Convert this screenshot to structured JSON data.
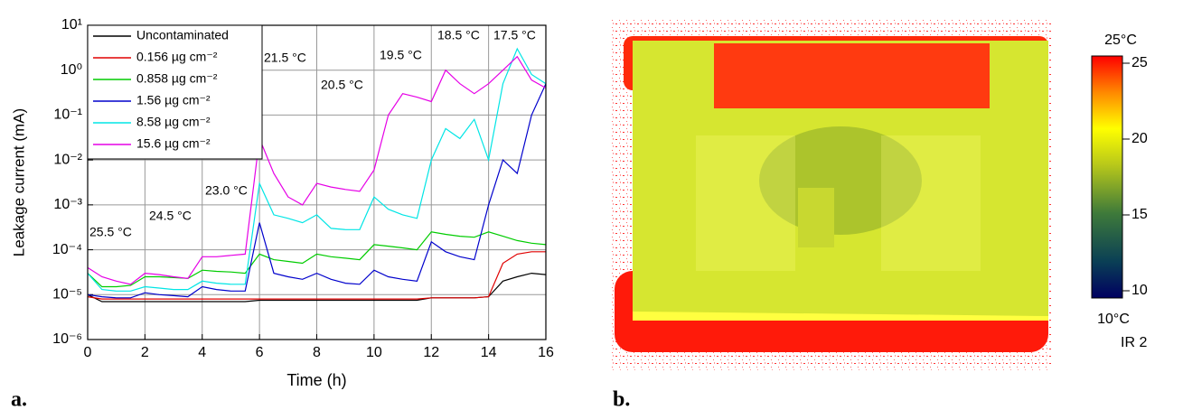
{
  "panel_labels": [
    "a.",
    "b."
  ],
  "chart_data": [
    {
      "type": "line",
      "log_y": true,
      "grid": true,
      "legend": "upper-left",
      "x_label": "Time (h)",
      "y_label": "Leakage current (mA)",
      "xlim": [
        0,
        16
      ],
      "xticks": [
        0,
        2,
        4,
        6,
        8,
        10,
        12,
        14,
        16
      ],
      "ylim": [
        1e-06,
        10
      ],
      "yticks": [
        {
          "value": 1e-06,
          "label": "10⁻⁶"
        },
        {
          "value": 1e-05,
          "label": "10⁻⁵"
        },
        {
          "value": 0.0001,
          "label": "10⁻⁴"
        },
        {
          "value": 0.001,
          "label": "10⁻³"
        },
        {
          "value": 0.01,
          "label": "10⁻²"
        },
        {
          "value": 0.1,
          "label": "10⁻¹"
        },
        {
          "value": 1,
          "label": "10⁰"
        },
        {
          "value": 10,
          "label": "10¹"
        }
      ],
      "annotations": [
        "25.5 °C",
        "24.5 °C",
        "23.0 °C",
        "21.5 °C",
        "20.5 °C",
        "19.5 °C",
        "18.5 °C",
        "17.5 °C"
      ],
      "x": [
        0,
        0.5,
        1,
        1.5,
        2,
        2.5,
        3,
        3.5,
        4,
        4.5,
        5,
        5.5,
        6,
        6.5,
        7,
        7.5,
        8,
        8.5,
        9,
        9.5,
        10,
        10.5,
        11,
        11.5,
        12,
        12.5,
        13,
        13.5,
        14,
        14.5,
        15,
        15.5,
        16
      ],
      "series": [
        {
          "name": "Uncontaminated",
          "color": "#000000",
          "values": [
            1e-05,
            7e-06,
            7e-06,
            7e-06,
            7e-06,
            7e-06,
            7e-06,
            7e-06,
            7e-06,
            7e-06,
            7e-06,
            7e-06,
            7.5e-06,
            7.5e-06,
            7.5e-06,
            7.5e-06,
            7.5e-06,
            7.5e-06,
            7.5e-06,
            7.5e-06,
            7.5e-06,
            7.5e-06,
            7.5e-06,
            7.5e-06,
            8.5e-06,
            8.5e-06,
            8.5e-06,
            8.5e-06,
            9e-06,
            2e-05,
            2.5e-05,
            3e-05,
            2.8e-05
          ]
        },
        {
          "name": "0.156 µg cm⁻²",
          "color": "#e00000",
          "values": [
            9e-06,
            8e-06,
            8e-06,
            8e-06,
            8e-06,
            8e-06,
            8e-06,
            8e-06,
            8e-06,
            8e-06,
            8e-06,
            8e-06,
            8e-06,
            8e-06,
            8e-06,
            8e-06,
            8e-06,
            8e-06,
            8e-06,
            8e-06,
            8e-06,
            8e-06,
            8e-06,
            8e-06,
            8.5e-06,
            8.5e-06,
            8.5e-06,
            8.5e-06,
            9e-06,
            5e-05,
            8e-05,
            9e-05,
            9e-05
          ]
        },
        {
          "name": "0.858 µg cm⁻²",
          "color": "#00cc00",
          "values": [
            3e-05,
            1.5e-05,
            1.5e-05,
            1.6e-05,
            2.5e-05,
            2.5e-05,
            2.4e-05,
            2.3e-05,
            3.5e-05,
            3.3e-05,
            3.2e-05,
            3e-05,
            8e-05,
            6e-05,
            5.5e-05,
            5e-05,
            8e-05,
            7e-05,
            6.5e-05,
            6e-05,
            0.00013,
            0.00012,
            0.00011,
            0.0001,
            0.00025,
            0.00022,
            0.0002,
            0.00019,
            0.00025,
            0.0002,
            0.00016,
            0.00014,
            0.00013
          ]
        },
        {
          "name": "1.56 µg cm⁻²",
          "color": "#0000cc",
          "values": [
            1e-05,
            9e-06,
            8.5e-06,
            8.5e-06,
            1.1e-05,
            1e-05,
            9.5e-06,
            9e-06,
            1.5e-05,
            1.3e-05,
            1.2e-05,
            1.2e-05,
            0.0004,
            3e-05,
            2.5e-05,
            2.2e-05,
            3e-05,
            2.2e-05,
            1.8e-05,
            1.7e-05,
            3.5e-05,
            2.5e-05,
            2.2e-05,
            2e-05,
            0.00015,
            9e-05,
            7e-05,
            6e-05,
            0.001,
            0.01,
            0.005,
            0.1,
            0.5
          ]
        },
        {
          "name": "8.58 µg cm⁻²",
          "color": "#00e5e5",
          "values": [
            3e-05,
            1.3e-05,
            1.2e-05,
            1.2e-05,
            1.5e-05,
            1.4e-05,
            1.3e-05,
            1.3e-05,
            2e-05,
            1.8e-05,
            1.7e-05,
            1.7e-05,
            0.003,
            0.0006,
            0.0005,
            0.0004,
            0.0006,
            0.0003,
            0.00028,
            0.00028,
            0.0015,
            0.0008,
            0.0006,
            0.0005,
            0.01,
            0.05,
            0.03,
            0.08,
            0.01,
            0.5,
            3,
            0.8,
            0.5
          ]
        },
        {
          "name": "15.6 µg cm⁻²",
          "color": "#e600e6",
          "values": [
            4e-05,
            2.5e-05,
            2e-05,
            1.7e-05,
            3e-05,
            2.8e-05,
            2.5e-05,
            2.3e-05,
            7e-05,
            7e-05,
            7.5e-05,
            8e-05,
            0.03,
            0.005,
            0.0015,
            0.001,
            0.003,
            0.0025,
            0.0022,
            0.002,
            0.006,
            0.1,
            0.3,
            0.25,
            0.2,
            1,
            0.5,
            0.3,
            0.5,
            1,
            2,
            0.6,
            0.4
          ]
        }
      ]
    },
    {
      "type": "thermal-image",
      "clim": [
        10,
        25
      ],
      "cticks": [
        10,
        15,
        20,
        25
      ],
      "max_label": "25°C",
      "min_label": "10°C",
      "label": "IR 2"
    }
  ]
}
